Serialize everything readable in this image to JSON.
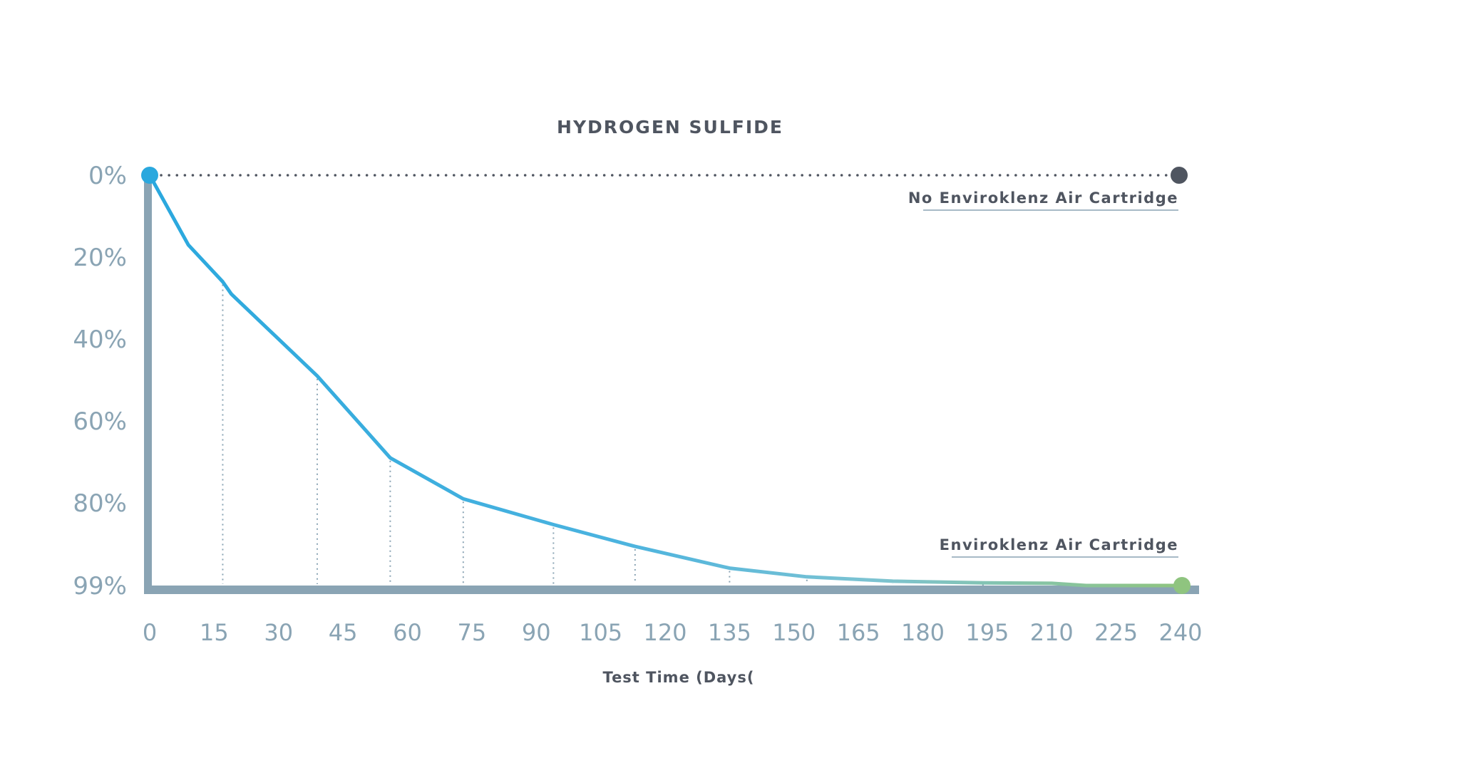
{
  "chart_data": {
    "type": "line",
    "title": "HYDROGEN SULFIDE",
    "xlabel": "Test Time (Days(",
    "ylabel": "",
    "x_ticks": [
      "0",
      "15",
      "30",
      "45",
      "60",
      "75",
      "90",
      "105",
      "120",
      "135",
      "150",
      "165",
      "180",
      "195",
      "210",
      "225",
      "240"
    ],
    "y_ticks": [
      "0%",
      "20%",
      "40%",
      "60%",
      "80%",
      "99%"
    ],
    "xlim": [
      0,
      240
    ],
    "y_inverted": true,
    "grid": false,
    "series": [
      {
        "name": "No Enviroklenz Air Cartridge",
        "style": "dotted",
        "color": "#4f5560",
        "x": [
          0,
          240
        ],
        "y": [
          0,
          0
        ]
      },
      {
        "name": "Enviroklenz Air Cartridge",
        "style": "solid-gradient",
        "color_start": "#2aa8de",
        "color_end": "#8fc47f",
        "x": [
          0,
          9,
          17,
          19,
          23,
          39,
          56,
          73,
          94,
          113,
          135,
          153,
          173,
          194,
          210,
          218,
          240
        ],
        "y": [
          0,
          17,
          26,
          29,
          33,
          49,
          69,
          79,
          85,
          90,
          95,
          97,
          98,
          98.4,
          98.5,
          99,
          99
        ]
      }
    ],
    "drop_line_x": [
      17,
      39,
      56,
      73,
      94,
      113,
      135,
      153,
      173,
      194
    ]
  },
  "colors": {
    "axis": "#8aa4b4",
    "start_marker": "#2aa8de",
    "end_marker_top": "#4f5560",
    "end_marker_bottom": "#8fc47f"
  }
}
